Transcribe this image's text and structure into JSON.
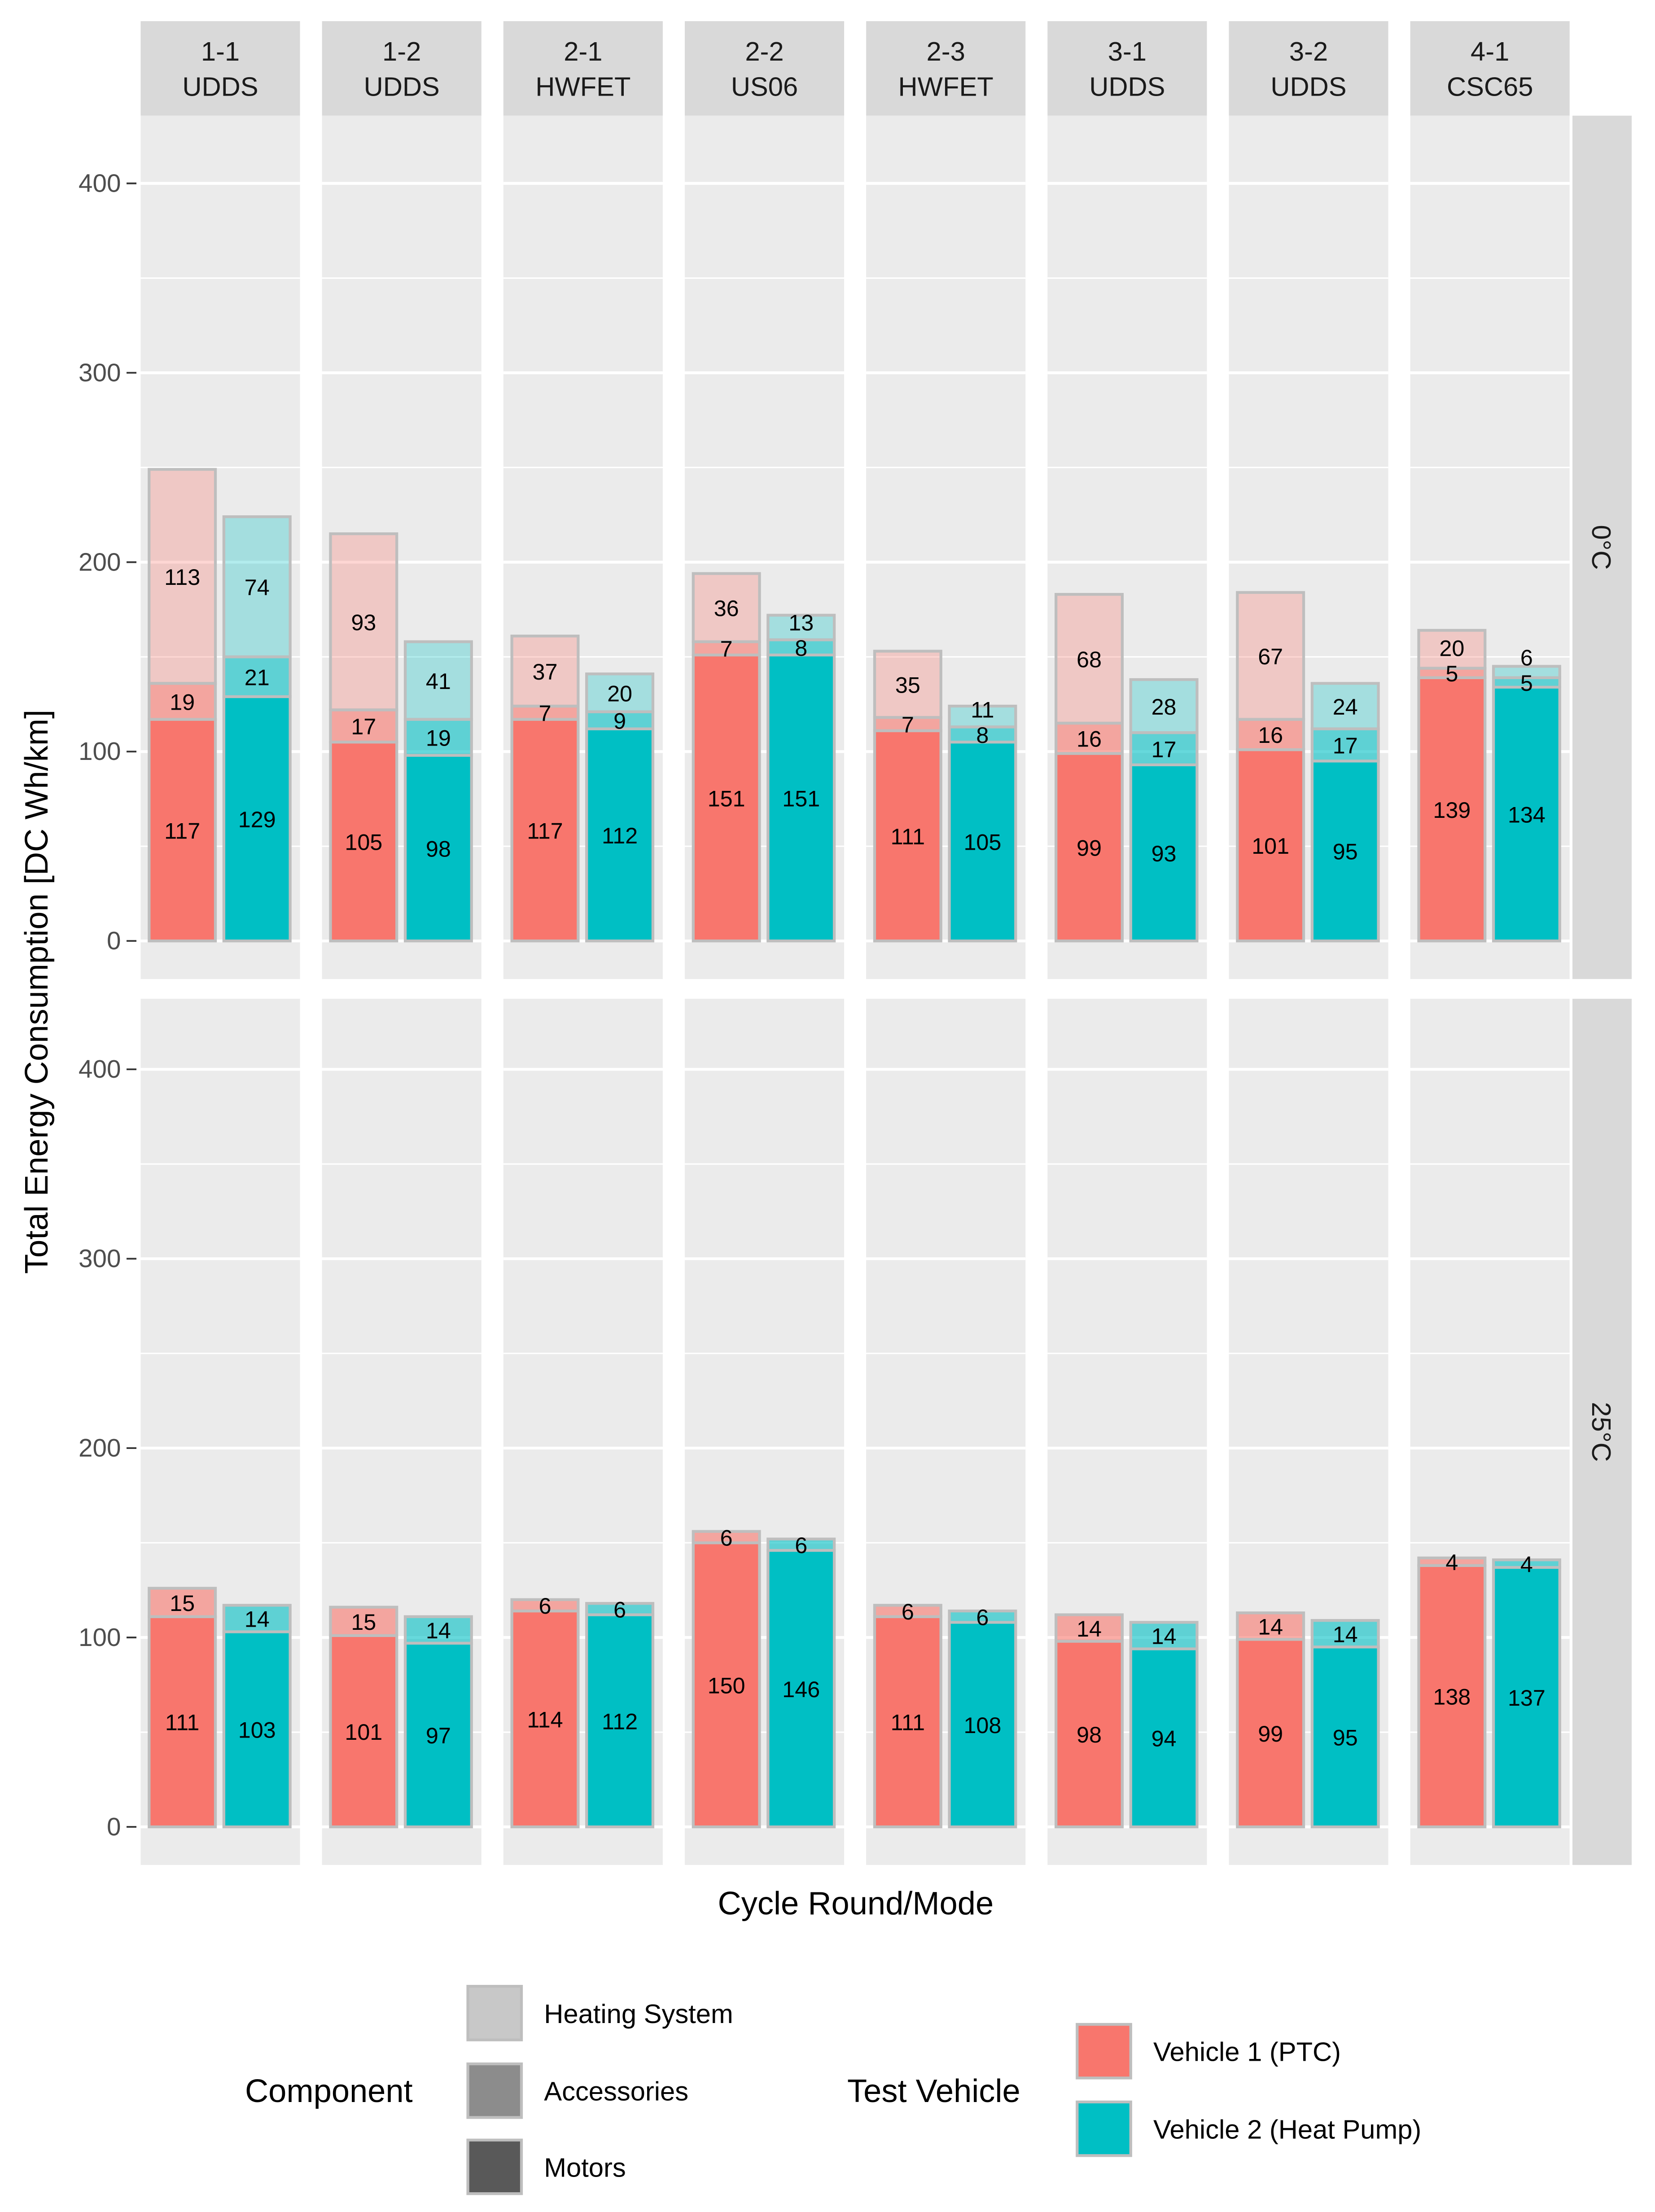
{
  "chart_data": {
    "type": "bar",
    "stacked": true,
    "xlabel": "Cycle Round/Mode",
    "ylabel": "Total Energy Consumption [DC Wh/km]",
    "ylim": [
      0,
      440
    ],
    "yticks": [
      0,
      100,
      200,
      300,
      400
    ],
    "grid": true,
    "facets_columns": [
      {
        "round": "1-1",
        "mode": "UDDS"
      },
      {
        "round": "1-2",
        "mode": "UDDS"
      },
      {
        "round": "2-1",
        "mode": "HWFET"
      },
      {
        "round": "2-2",
        "mode": "US06"
      },
      {
        "round": "2-3",
        "mode": "HWFET"
      },
      {
        "round": "3-1",
        "mode": "UDDS"
      },
      {
        "round": "3-2",
        "mode": "UDDS"
      },
      {
        "round": "4-1",
        "mode": "CSC65"
      }
    ],
    "facets_rows": [
      "0°C",
      "25°C"
    ],
    "components": [
      "Motors",
      "Accessories",
      "Heating System"
    ],
    "vehicles": [
      "Vehicle 1 (PTC)",
      "Vehicle 2 (Heat Pump)"
    ],
    "values": {
      "0°C": [
        [
          [
            117,
            19,
            113
          ],
          [
            129,
            21,
            74
          ]
        ],
        [
          [
            105,
            17,
            93
          ],
          [
            98,
            19,
            41
          ]
        ],
        [
          [
            117,
            7,
            37
          ],
          [
            112,
            9,
            20
          ]
        ],
        [
          [
            151,
            7,
            36
          ],
          [
            151,
            8,
            13
          ]
        ],
        [
          [
            111,
            7,
            35
          ],
          [
            105,
            8,
            11
          ]
        ],
        [
          [
            99,
            16,
            68
          ],
          [
            93,
            17,
            28
          ]
        ],
        [
          [
            101,
            16,
            67
          ],
          [
            95,
            17,
            24
          ]
        ],
        [
          [
            139,
            5,
            20
          ],
          [
            134,
            5,
            6
          ]
        ]
      ],
      "25°C": [
        [
          [
            111,
            15,
            0
          ],
          [
            103,
            14,
            0
          ]
        ],
        [
          [
            101,
            15,
            0
          ],
          [
            97,
            14,
            0
          ]
        ],
        [
          [
            114,
            6,
            0
          ],
          [
            112,
            6,
            0
          ]
        ],
        [
          [
            150,
            6,
            0
          ],
          [
            146,
            6,
            0
          ]
        ],
        [
          [
            111,
            6,
            0
          ],
          [
            108,
            6,
            0
          ]
        ],
        [
          [
            98,
            14,
            0
          ],
          [
            94,
            14,
            0
          ]
        ],
        [
          [
            99,
            14,
            0
          ],
          [
            95,
            14,
            0
          ]
        ],
        [
          [
            138,
            4,
            0
          ],
          [
            137,
            4,
            0
          ]
        ]
      ]
    },
    "legend": {
      "component_title": "Component",
      "component_items": [
        "Heating System",
        "Accessories",
        "Motors"
      ],
      "vehicle_title": "Test Vehicle",
      "vehicle_items": [
        "Vehicle 1 (PTC)",
        "Vehicle 2 (Heat Pump)"
      ],
      "placement": "bottom"
    },
    "colors": {
      "vehicle1": "#F8766D",
      "vehicle2": "#00BFC4",
      "panel_bg": "#EBEBEB",
      "strip_bg": "#D9D9D9",
      "bar_border": "#BEBEBE",
      "legend_heating": "#C8C8C8",
      "legend_accessories": "#8C8C8C",
      "legend_motors": "#595959"
    }
  }
}
